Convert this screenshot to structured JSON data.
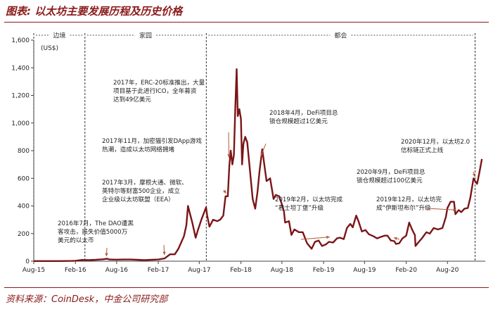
{
  "header": {
    "title": "图表: 以太坊主要发展历程及历史价格"
  },
  "footer": {
    "source": "资料来源：CoinDesk，中金公司研究部"
  },
  "chart_data": {
    "type": "line",
    "ylabel": "(US$)",
    "ylim": [
      0,
      1600
    ],
    "yticks": [
      "0",
      "200",
      "400",
      "600",
      "800",
      "1,000",
      "1,200",
      "1,400",
      "1,600"
    ],
    "xlim": [
      "2015-08-01",
      "2021-01-15"
    ],
    "xticks": [
      {
        "label": "Aug-15",
        "date": "2015-08-01"
      },
      {
        "label": "Feb-16",
        "date": "2016-02-01"
      },
      {
        "label": "Aug-16",
        "date": "2016-08-01"
      },
      {
        "label": "Feb-17",
        "date": "2017-02-01"
      },
      {
        "label": "Aug-17",
        "date": "2017-08-01"
      },
      {
        "label": "Feb-18",
        "date": "2018-02-01"
      },
      {
        "label": "Aug-18",
        "date": "2018-08-01"
      },
      {
        "label": "Feb-19",
        "date": "2019-02-01"
      },
      {
        "label": "Aug-19",
        "date": "2019-08-01"
      },
      {
        "label": "Feb-20",
        "date": "2020-02-01"
      },
      {
        "label": "Aug-20",
        "date": "2020-08-01"
      }
    ],
    "eras": [
      {
        "label": "边境",
        "from": "2015-08-01",
        "to": "2016-03-14"
      },
      {
        "label": "家园",
        "from": "2016-03-14",
        "to": "2017-09-01"
      },
      {
        "label": "都会",
        "from": "2017-09-01",
        "to": "2020-12-01"
      }
    ],
    "series": [
      {
        "color": "#7a1518",
        "points": [
          [
            "2015-08-01",
            1
          ],
          [
            "2015-10-01",
            1
          ],
          [
            "2015-12-01",
            1
          ],
          [
            "2016-01-15",
            2
          ],
          [
            "2016-02-01",
            3
          ],
          [
            "2016-03-01",
            9
          ],
          [
            "2016-04-01",
            8
          ],
          [
            "2016-05-01",
            10
          ],
          [
            "2016-06-01",
            14
          ],
          [
            "2016-06-20",
            18
          ],
          [
            "2016-07-01",
            12
          ],
          [
            "2016-08-01",
            11
          ],
          [
            "2016-09-01",
            12
          ],
          [
            "2016-10-01",
            12
          ],
          [
            "2016-11-01",
            10
          ],
          [
            "2016-12-01",
            8
          ],
          [
            "2017-01-01",
            10
          ],
          [
            "2017-02-01",
            12
          ],
          [
            "2017-03-01",
            20
          ],
          [
            "2017-03-25",
            50
          ],
          [
            "2017-04-15",
            50
          ],
          [
            "2017-05-01",
            90
          ],
          [
            "2017-05-25",
            180
          ],
          [
            "2017-06-05",
            260
          ],
          [
            "2017-06-12",
            400
          ],
          [
            "2017-06-20",
            350
          ],
          [
            "2017-07-01",
            280
          ],
          [
            "2017-07-16",
            170
          ],
          [
            "2017-07-25",
            220
          ],
          [
            "2017-08-10",
            300
          ],
          [
            "2017-08-31",
            390
          ],
          [
            "2017-09-05",
            330
          ],
          [
            "2017-09-15",
            250
          ],
          [
            "2017-10-01",
            300
          ],
          [
            "2017-10-20",
            290
          ],
          [
            "2017-11-01",
            300
          ],
          [
            "2017-11-15",
            330
          ],
          [
            "2017-11-25",
            470
          ],
          [
            "2017-12-05",
            470
          ],
          [
            "2017-12-12",
            700
          ],
          [
            "2017-12-18",
            800
          ],
          [
            "2017-12-25",
            700
          ],
          [
            "2018-01-01",
            770
          ],
          [
            "2018-01-07",
            1100
          ],
          [
            "2018-01-13",
            1390
          ],
          [
            "2018-01-18",
            1050
          ],
          [
            "2018-01-25",
            1100
          ],
          [
            "2018-02-01",
            1030
          ],
          [
            "2018-02-06",
            700
          ],
          [
            "2018-02-12",
            850
          ],
          [
            "2018-02-20",
            900
          ],
          [
            "2018-03-01",
            860
          ],
          [
            "2018-03-15",
            620
          ],
          [
            "2018-03-25",
            450
          ],
          [
            "2018-04-05",
            380
          ],
          [
            "2018-04-15",
            500
          ],
          [
            "2018-04-24",
            650
          ],
          [
            "2018-05-06",
            810
          ],
          [
            "2018-05-15",
            700
          ],
          [
            "2018-05-25",
            580
          ],
          [
            "2018-06-10",
            600
          ],
          [
            "2018-06-25",
            450
          ],
          [
            "2018-07-05",
            480
          ],
          [
            "2018-07-20",
            470
          ],
          [
            "2018-08-01",
            410
          ],
          [
            "2018-08-10",
            360
          ],
          [
            "2018-08-15",
            280
          ],
          [
            "2018-09-01",
            290
          ],
          [
            "2018-09-12",
            190
          ],
          [
            "2018-09-25",
            230
          ],
          [
            "2018-10-15",
            210
          ],
          [
            "2018-11-01",
            210
          ],
          [
            "2018-11-20",
            130
          ],
          [
            "2018-12-10",
            90
          ],
          [
            "2018-12-25",
            140
          ],
          [
            "2019-01-10",
            150
          ],
          [
            "2019-01-25",
            110
          ],
          [
            "2019-02-10",
            120
          ],
          [
            "2019-02-25",
            140
          ],
          [
            "2019-03-15",
            135
          ],
          [
            "2019-04-01",
            165
          ],
          [
            "2019-04-15",
            170
          ],
          [
            "2019-05-01",
            160
          ],
          [
            "2019-05-15",
            240
          ],
          [
            "2019-05-30",
            270
          ],
          [
            "2019-06-10",
            245
          ],
          [
            "2019-06-25",
            330
          ],
          [
            "2019-07-05",
            290
          ],
          [
            "2019-07-20",
            215
          ],
          [
            "2019-08-05",
            225
          ],
          [
            "2019-08-20",
            195
          ],
          [
            "2019-09-10",
            180
          ],
          [
            "2019-09-25",
            165
          ],
          [
            "2019-10-10",
            175
          ],
          [
            "2019-10-28",
            185
          ],
          [
            "2019-11-10",
            185
          ],
          [
            "2019-11-25",
            150
          ],
          [
            "2019-12-10",
            145
          ],
          [
            "2019-12-18",
            125
          ],
          [
            "2020-01-01",
            130
          ],
          [
            "2020-01-15",
            165
          ],
          [
            "2020-02-01",
            185
          ],
          [
            "2020-02-14",
            280
          ],
          [
            "2020-02-28",
            225
          ],
          [
            "2020-03-10",
            190
          ],
          [
            "2020-03-13",
            110
          ],
          [
            "2020-03-25",
            135
          ],
          [
            "2020-04-10",
            165
          ],
          [
            "2020-04-30",
            210
          ],
          [
            "2020-05-15",
            200
          ],
          [
            "2020-06-01",
            240
          ],
          [
            "2020-06-20",
            230
          ],
          [
            "2020-07-10",
            240
          ],
          [
            "2020-07-25",
            320
          ],
          [
            "2020-08-01",
            385
          ],
          [
            "2020-08-15",
            430
          ],
          [
            "2020-08-30",
            430
          ],
          [
            "2020-09-05",
            340
          ],
          [
            "2020-09-20",
            370
          ],
          [
            "2020-10-01",
            355
          ],
          [
            "2020-10-15",
            380
          ],
          [
            "2020-10-30",
            385
          ],
          [
            "2020-11-10",
            460
          ],
          [
            "2020-11-24",
            600
          ],
          [
            "2020-12-01",
            580
          ],
          [
            "2020-12-10",
            560
          ],
          [
            "2020-12-20",
            640
          ],
          [
            "2020-12-31",
            740
          ]
        ]
      }
    ],
    "annotations": [
      {
        "lines": [
          "2016年7月，The DAO遭黑",
          "客攻击，损失价值5000万",
          "美元的以太币"
        ],
        "date": "2016-06-17",
        "value": 15
      },
      {
        "lines": [
          "2017年3月，摩根大通、微软、",
          "英特尔等财富500企业，成立",
          "企业级以太坊联盟（EEA）"
        ],
        "date": "2017-02-28",
        "value": 25
      },
      {
        "lines": [
          "2017年11月，加密猫引发DApp游戏",
          "热潮，造成以太坊网络拥堵"
        ],
        "date": "2017-11-28",
        "value": 470
      },
      {
        "lines": [
          "2017年，ERC-20标准推出，大量",
          "项目基于此进行ICO，全年募资",
          "达到49亿美元"
        ],
        "date": "2017-12-10",
        "value": 730
      },
      {
        "lines": [
          "2018年4月，DeFi项目总",
          "锁仓规模超过1亿美元"
        ],
        "date": "2018-04-30",
        "value": 740
      },
      {
        "lines": [
          "2019年2月，以太坊完成",
          "“君士坦丁堡”升级"
        ],
        "date": "2019-02-28",
        "value": 155
      },
      {
        "lines": [
          "2019年12月，以太坊完",
          "成“伊斯坦布尔”升级"
        ],
        "date": "2019-12-08",
        "value": 150
      },
      {
        "lines": [
          "2020年9月，DeFi项目总",
          "锁仓规模超过100亿美元"
        ],
        "date": "2020-09-10",
        "value": 350
      },
      {
        "lines": [
          "2020年12月，以太坊2.0",
          "信标链正式上线"
        ],
        "date": "2020-12-01",
        "value": 590
      }
    ]
  }
}
